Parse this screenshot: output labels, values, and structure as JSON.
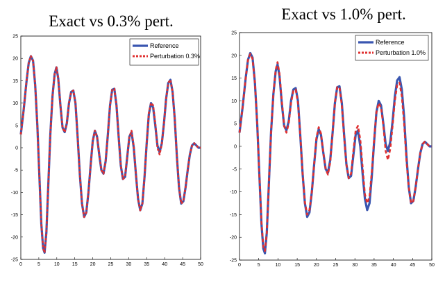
{
  "chart_data": [
    {
      "type": "line",
      "title": "Exact vs 0.3% pert.",
      "xlabel": "",
      "ylabel": "",
      "xlim": [
        0,
        50
      ],
      "ylim": [
        -25,
        25
      ],
      "xticks": [
        0,
        5,
        10,
        15,
        20,
        25,
        30,
        35,
        40,
        45,
        50
      ],
      "yticks": [
        25,
        20,
        15,
        10,
        5,
        0,
        -5,
        -10,
        -15,
        -20,
        -25
      ],
      "grid": false,
      "legend_position": "top-right",
      "series": [
        {
          "name": "Reference",
          "color": "#3a56b0",
          "style": "solid",
          "x": [
            0,
            0.8,
            1.6,
            2.2,
            2.8,
            3.4,
            4.0,
            4.6,
            5.2,
            5.7,
            6.2,
            6.6,
            7.1,
            7.6,
            8.2,
            8.8,
            9.4,
            9.9,
            10.4,
            11.0,
            11.6,
            12.2,
            12.8,
            13.4,
            14.0,
            14.6,
            15.2,
            15.8,
            16.4,
            17.0,
            17.6,
            18.2,
            18.8,
            19.4,
            20.0,
            20.6,
            21.2,
            21.8,
            22.4,
            23.0,
            23.6,
            24.2,
            24.8,
            25.4,
            26.0,
            26.6,
            27.2,
            27.8,
            28.4,
            29.0,
            29.6,
            30.2,
            30.8,
            31.4,
            32.0,
            32.6,
            33.2,
            33.8,
            34.4,
            35.0,
            35.6,
            36.2,
            36.8,
            37.4,
            38.0,
            38.6,
            39.2,
            39.8,
            40.4,
            41.0,
            41.6,
            42.2,
            42.8,
            43.4,
            44.0,
            44.6,
            45.2,
            45.8,
            46.4,
            47.0,
            47.6,
            48.2,
            48.8,
            49.4,
            50.0
          ],
          "y": [
            3,
            8.5,
            15,
            19,
            20.5,
            19.5,
            14,
            5,
            -7,
            -17,
            -22.5,
            -23.5,
            -19,
            -9,
            3,
            11.5,
            16.5,
            18,
            15.5,
            9.5,
            4.5,
            3.5,
            5.5,
            10,
            12.5,
            12.8,
            10,
            2.5,
            -6,
            -12.5,
            -15.5,
            -14.5,
            -10,
            -4,
            1.5,
            3.8,
            2.5,
            -1.5,
            -5,
            -5.8,
            -3,
            3,
            9.5,
            13,
            13.2,
            9.5,
            2.5,
            -4,
            -7,
            -6.5,
            -2,
            2.5,
            3.5,
            0,
            -6,
            -11.5,
            -14,
            -12.5,
            -6.5,
            1,
            7.5,
            10,
            9,
            5,
            0.5,
            -1,
            1,
            5.5,
            11,
            14.5,
            15.2,
            12.5,
            6.5,
            -2,
            -9,
            -12.5,
            -12,
            -9,
            -5,
            -1.5,
            0.5,
            1,
            0.5,
            0,
            0
          ]
        },
        {
          "name": "Perturbation 0.3%",
          "color": "#e03030",
          "style": "dotted",
          "x": [
            0,
            0.8,
            1.6,
            2.2,
            2.8,
            3.4,
            4.0,
            4.6,
            5.2,
            5.7,
            6.2,
            6.6,
            7.1,
            7.6,
            8.2,
            8.8,
            9.4,
            9.9,
            10.4,
            11.0,
            11.6,
            12.2,
            12.8,
            13.4,
            14.0,
            14.6,
            15.2,
            15.8,
            16.4,
            17.0,
            17.6,
            18.2,
            18.8,
            19.4,
            20.0,
            20.6,
            21.2,
            21.8,
            22.4,
            23.0,
            23.6,
            24.2,
            24.8,
            25.4,
            26.0,
            26.6,
            27.2,
            27.8,
            28.4,
            29.0,
            29.6,
            30.2,
            30.8,
            31.4,
            32.0,
            32.6,
            33.2,
            33.8,
            34.4,
            35.0,
            35.6,
            36.2,
            36.8,
            37.4,
            38.0,
            38.6,
            39.2,
            39.8,
            40.4,
            41.0,
            41.6,
            42.2,
            42.8,
            43.4,
            44.0,
            44.6,
            45.2,
            45.8,
            46.4,
            47.0,
            47.6,
            48.2,
            48.8,
            49.4,
            50.0
          ],
          "y": [
            3,
            8.5,
            15,
            19,
            20.5,
            19.5,
            14,
            5,
            -7,
            -17,
            -22.5,
            -23.5,
            -19,
            -9,
            3,
            11.5,
            16.5,
            18,
            15.5,
            9.5,
            4.5,
            3.5,
            5.5,
            10,
            12.5,
            12.8,
            10,
            2.5,
            -6,
            -12.5,
            -15.5,
            -14.5,
            -10,
            -4,
            1.5,
            3.8,
            2.5,
            -1.5,
            -5,
            -5.8,
            -3,
            3,
            9.5,
            13,
            13.2,
            9.5,
            2.5,
            -4,
            -7,
            -6.5,
            -2,
            2.5,
            3.8,
            0.3,
            -6,
            -11.5,
            -14,
            -12.5,
            -6.5,
            1,
            7.8,
            10,
            9.5,
            5.5,
            0,
            -1.5,
            0.8,
            5.5,
            11,
            14.5,
            15.2,
            12.5,
            6.5,
            -2,
            -9,
            -12.5,
            -12,
            -9,
            -5,
            -1.5,
            0.5,
            1,
            0.5,
            0,
            0
          ]
        }
      ]
    },
    {
      "type": "line",
      "title": "Exact vs 1.0% pert.",
      "xlabel": "",
      "ylabel": "",
      "xlim": [
        0,
        50
      ],
      "ylim": [
        -25,
        25
      ],
      "xticks": [
        0,
        5,
        10,
        15,
        20,
        25,
        30,
        35,
        40,
        45,
        50
      ],
      "yticks": [
        25,
        20,
        15,
        10,
        5,
        0,
        -5,
        -10,
        -15,
        -20,
        -25
      ],
      "grid": false,
      "legend_position": "top-right",
      "series": [
        {
          "name": "Reference",
          "color": "#3a56b0",
          "style": "solid",
          "x": [
            0,
            0.8,
            1.6,
            2.2,
            2.8,
            3.4,
            4.0,
            4.6,
            5.2,
            5.7,
            6.2,
            6.6,
            7.1,
            7.6,
            8.2,
            8.8,
            9.4,
            9.9,
            10.4,
            11.0,
            11.6,
            12.2,
            12.8,
            13.4,
            14.0,
            14.6,
            15.2,
            15.8,
            16.4,
            17.0,
            17.6,
            18.2,
            18.8,
            19.4,
            20.0,
            20.6,
            21.2,
            21.8,
            22.4,
            23.0,
            23.6,
            24.2,
            24.8,
            25.4,
            26.0,
            26.6,
            27.2,
            27.8,
            28.4,
            29.0,
            29.6,
            30.2,
            30.8,
            31.4,
            32.0,
            32.6,
            33.2,
            33.8,
            34.4,
            35.0,
            35.6,
            36.2,
            36.8,
            37.4,
            38.0,
            38.6,
            39.2,
            39.8,
            40.4,
            41.0,
            41.6,
            42.2,
            42.8,
            43.4,
            44.0,
            44.6,
            45.2,
            45.8,
            46.4,
            47.0,
            47.6,
            48.2,
            48.8,
            49.4,
            50.0
          ],
          "y": [
            3,
            8.5,
            15,
            19,
            20.5,
            19.5,
            14,
            5,
            -7,
            -17,
            -22.5,
            -23.5,
            -19,
            -9,
            3,
            11.5,
            16.5,
            18,
            15.5,
            9.5,
            4.5,
            3.5,
            5.5,
            10,
            12.5,
            12.8,
            10,
            2.5,
            -6,
            -12.5,
            -15.5,
            -14.5,
            -10,
            -4,
            1.5,
            3.8,
            2.5,
            -1.5,
            -5,
            -5.8,
            -3,
            3,
            9.5,
            13,
            13.2,
            9.5,
            2.5,
            -4,
            -7,
            -6.5,
            -2,
            2.5,
            3.5,
            0,
            -6,
            -11.5,
            -14,
            -12.5,
            -6.5,
            1,
            7.5,
            10,
            9,
            5,
            0.5,
            -1,
            1,
            5.5,
            11,
            14.5,
            15.2,
            12.5,
            6.5,
            -2,
            -9,
            -12.5,
            -12,
            -9,
            -5,
            -1.5,
            0.5,
            1,
            0.5,
            0,
            0
          ]
        },
        {
          "name": "Perturbation 1.0%",
          "color": "#e03030",
          "style": "dotted",
          "x": [
            0,
            0.8,
            1.6,
            2.2,
            2.8,
            3.4,
            4.0,
            4.6,
            5.2,
            5.7,
            6.2,
            6.6,
            7.1,
            7.6,
            8.2,
            8.8,
            9.4,
            9.9,
            10.4,
            11.0,
            11.6,
            12.2,
            12.8,
            13.4,
            14.0,
            14.6,
            15.2,
            15.8,
            16.4,
            17.0,
            17.6,
            18.2,
            18.8,
            19.4,
            20.0,
            20.6,
            21.2,
            21.8,
            22.4,
            23.0,
            23.6,
            24.2,
            24.8,
            25.4,
            26.0,
            26.6,
            27.2,
            27.8,
            28.4,
            29.0,
            29.6,
            30.2,
            30.8,
            31.4,
            32.0,
            32.6,
            33.2,
            33.8,
            34.4,
            35.0,
            35.6,
            36.2,
            36.8,
            37.4,
            38.0,
            38.6,
            39.2,
            39.8,
            40.4,
            41.0,
            41.6,
            42.2,
            42.8,
            43.4,
            44.0,
            44.6,
            45.2,
            45.8,
            46.4,
            47.0,
            47.6,
            48.2,
            48.8,
            49.4,
            50.0
          ],
          "y": [
            3,
            8.5,
            15,
            19,
            20.3,
            19.2,
            14,
            5,
            -7,
            -16.5,
            -22,
            -23,
            -19,
            -9,
            3,
            11.5,
            16.8,
            18.5,
            16,
            10,
            4.5,
            3,
            5,
            9.5,
            12.2,
            12.5,
            9.5,
            2.5,
            -6,
            -12.3,
            -15,
            -14,
            -10,
            -4,
            2,
            4.2,
            2.8,
            -1.5,
            -5,
            -6.2,
            -3.5,
            3,
            9.5,
            13,
            13,
            9,
            2,
            -4,
            -7,
            -6,
            -1,
            3.5,
            4.5,
            1.5,
            -4.5,
            -10.5,
            -12.5,
            -11,
            -5.5,
            1.5,
            7.5,
            9.5,
            8.5,
            4.5,
            -1,
            -3,
            -0.5,
            4.5,
            10,
            13.5,
            14,
            11,
            5,
            -3,
            -9,
            -12.5,
            -12,
            -9,
            -5,
            -1.5,
            0.5,
            1,
            0.5,
            0,
            0
          ]
        }
      ]
    }
  ]
}
